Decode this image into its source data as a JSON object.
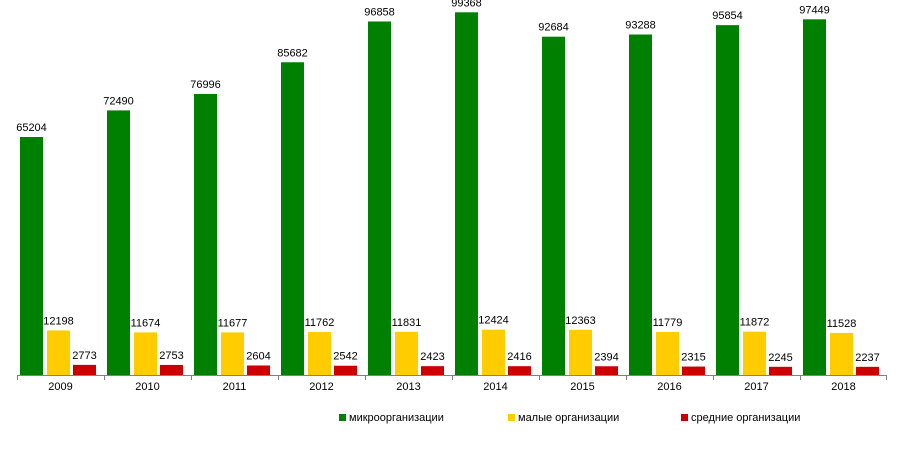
{
  "chart_data": {
    "type": "bar",
    "categories": [
      "2009",
      "2010",
      "2011",
      "2012",
      "2013",
      "2014",
      "2015",
      "2016",
      "2017",
      "2018"
    ],
    "series": [
      {
        "name": "микроорганизации",
        "color": "#008000",
        "values": [
          65204,
          72490,
          76996,
          85682,
          96858,
          99368,
          92684,
          93288,
          95854,
          97449
        ]
      },
      {
        "name": "малые организации",
        "color": "#ffcc00",
        "values": [
          12198,
          11674,
          11677,
          11762,
          11831,
          12424,
          12363,
          11779,
          11872,
          11528
        ]
      },
      {
        "name": "средние организации",
        "color": "#cc0000",
        "values": [
          2773,
          2753,
          2604,
          2542,
          2423,
          2416,
          2394,
          2315,
          2245,
          2237
        ]
      }
    ],
    "ylim": [
      0,
      100000
    ],
    "grid": false,
    "legend_position": "bottom",
    "data_labels": true
  }
}
